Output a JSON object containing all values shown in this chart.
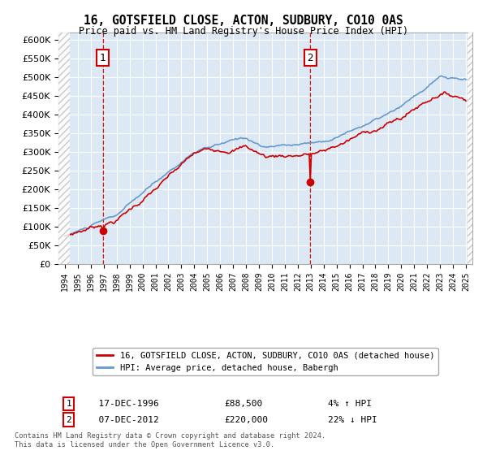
{
  "title": "16, GOTSFIELD CLOSE, ACTON, SUDBURY, CO10 0AS",
  "subtitle": "Price paid vs. HM Land Registry's House Price Index (HPI)",
  "red_label": "16, GOTSFIELD CLOSE, ACTON, SUDBURY, CO10 0AS (detached house)",
  "blue_label": "HPI: Average price, detached house, Babergh",
  "footnote": "Contains HM Land Registry data © Crown copyright and database right 2024.\nThis data is licensed under the Open Government Licence v3.0.",
  "sale1_date": "17-DEC-1996",
  "sale1_price": 88500,
  "sale1_note": "4% ↑ HPI",
  "sale2_date": "07-DEC-2012",
  "sale2_price": 220000,
  "sale2_note": "22% ↓ HPI",
  "sale1_year": 1996.96,
  "sale2_year": 2012.96,
  "ylim": [
    0,
    620000
  ],
  "yticks": [
    0,
    50000,
    100000,
    150000,
    200000,
    250000,
    300000,
    350000,
    400000,
    450000,
    500000,
    550000,
    600000
  ],
  "xlim_start": 1993.5,
  "xlim_end": 2025.5,
  "background_color": "#dce9f5",
  "hatch_color": "#c0c0c0",
  "grid_color": "#ffffff",
  "red_color": "#cc0000",
  "blue_color": "#6699cc"
}
